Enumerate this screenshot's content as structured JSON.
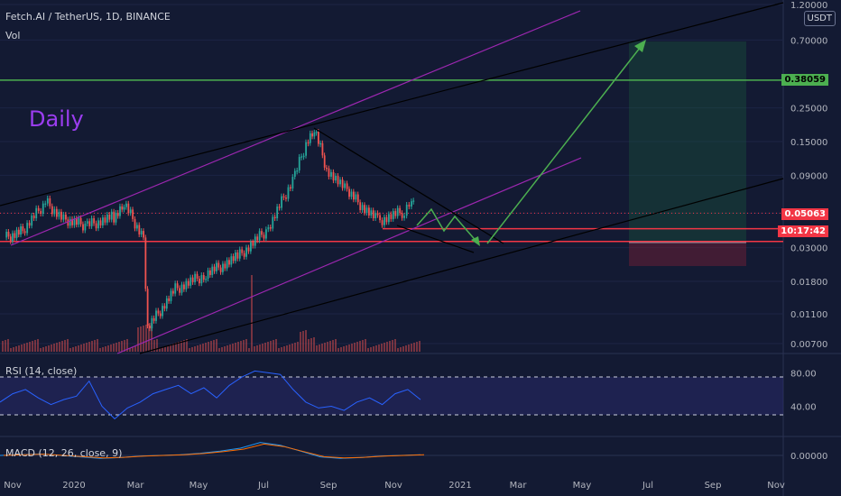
{
  "header": {
    "symbol_title": "Fetch.AI / TetherUS, 1D, BINANCE",
    "volume_label": "Vol",
    "annotation": "Daily",
    "unit_button": "USDT"
  },
  "indicators": {
    "rsi_label": "RSI (14, close)",
    "macd_label": "MACD (12, 26, close, 9)"
  },
  "price_tags": {
    "resistance": "0.38059",
    "last_price": "0.05063",
    "countdown": "10:17:42"
  },
  "colors": {
    "background": "#131a33",
    "candle_up": "#26a69a",
    "candle_down": "#ef5350",
    "channel": "#9c27b0",
    "trendline": "#000000",
    "projection": "#4caf50",
    "support": "#f23645",
    "rsi_line": "#2962ff"
  },
  "chart_data": [
    {
      "type": "candlestick",
      "title": "Fetch.AI / TetherUS, 1D, BINANCE",
      "y_scale": "log",
      "y_ticks": [
        "1.20000",
        "0.70000",
        "0.38059",
        "0.25000",
        "0.15000",
        "0.09000",
        "0.05063",
        "0.03000",
        "0.01800",
        "0.01100",
        "0.00700"
      ],
      "x_ticks": [
        "Nov",
        "2020",
        "Mar",
        "May",
        "Jul",
        "Sep",
        "Nov",
        "2021",
        "Mar",
        "May",
        "Jul",
        "Sep",
        "Nov"
      ],
      "close_path": [
        {
          "x": "2019-10-28",
          "y": 0.035
        },
        {
          "x": "2019-11-15",
          "y": 0.04
        },
        {
          "x": "2019-12-05",
          "y": 0.06
        },
        {
          "x": "2019-12-25",
          "y": 0.045
        },
        {
          "x": "2020-01-15",
          "y": 0.042
        },
        {
          "x": "2020-02-10",
          "y": 0.048
        },
        {
          "x": "2020-02-20",
          "y": 0.058
        },
        {
          "x": "2020-03-10",
          "y": 0.035
        },
        {
          "x": "2020-03-14",
          "y": 0.0088
        },
        {
          "x": "2020-04-10",
          "y": 0.016
        },
        {
          "x": "2020-05-10",
          "y": 0.02
        },
        {
          "x": "2020-06-10",
          "y": 0.026
        },
        {
          "x": "2020-07-10",
          "y": 0.04
        },
        {
          "x": "2020-08-05",
          "y": 0.09
        },
        {
          "x": "2020-08-18",
          "y": 0.16
        },
        {
          "x": "2020-08-24",
          "y": 0.18
        },
        {
          "x": "2020-09-05",
          "y": 0.1
        },
        {
          "x": "2020-09-25",
          "y": 0.07
        },
        {
          "x": "2020-10-25",
          "y": 0.045
        },
        {
          "x": "2020-11-20",
          "y": 0.052
        },
        {
          "x": "2020-11-27",
          "y": 0.062
        },
        {
          "x": "2020-12-01",
          "y": 0.051
        }
      ],
      "horizontal_levels": [
        {
          "name": "resistance",
          "value": 0.38059
        },
        {
          "name": "support",
          "value": 0.033
        },
        {
          "name": "support2",
          "value": 0.04
        },
        {
          "name": "last",
          "value": 0.05063
        }
      ],
      "drawings": [
        "purple ascending channel",
        "black ascending trendlines",
        "black descending trendline",
        "green projection path to 0.7",
        "long position box"
      ]
    },
    {
      "type": "line",
      "title": "RSI (14, close)",
      "y_ticks": [
        "80.00",
        "40.00"
      ],
      "levels": [
        70,
        30
      ],
      "series": [
        {
          "values": [
            45,
            55,
            60,
            50,
            42,
            48,
            52,
            70,
            40,
            25,
            38,
            45,
            55,
            60,
            65,
            55,
            62,
            50,
            65,
            75,
            82,
            80,
            78,
            60,
            45,
            38,
            40,
            35,
            45,
            50,
            42,
            55,
            60,
            48
          ]
        }
      ]
    },
    {
      "type": "line",
      "title": "MACD (12, 26, close, 9)",
      "y_ticks": [
        "0.00000"
      ],
      "series": [
        {
          "values": [
            0,
            0.001,
            0.002,
            0,
            -0.002,
            -0.004,
            -0.003,
            -0.001,
            0,
            0.001,
            0.003,
            0.006,
            0.01,
            0.018,
            0.014,
            0.006,
            -0.002,
            -0.004,
            -0.003,
            -0.001,
            0,
            0.001
          ]
        }
      ]
    }
  ]
}
